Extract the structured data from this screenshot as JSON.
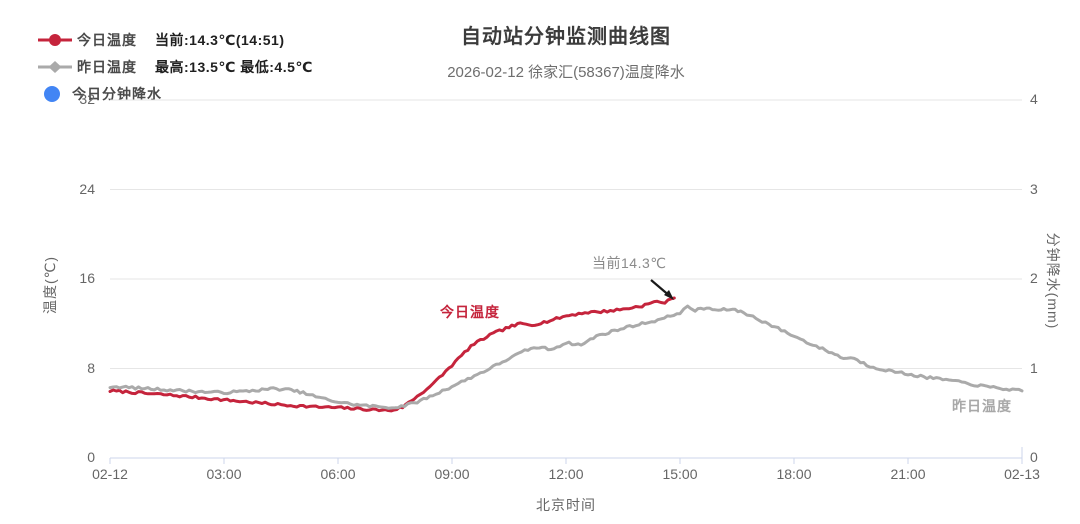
{
  "title": "自动站分钟监测曲线图",
  "subtitle": "2026-02-12 徐家汇(58367)温度降水",
  "colors": {
    "today": "#c5243c",
    "yesterday": "#aaaaaa",
    "precip": "#4285f4",
    "grid": "#e6e6e6",
    "axis": "#ccd6eb",
    "arrow": "#1a1a1a"
  },
  "legend": {
    "items": [
      {
        "name": "今日温度",
        "stat": "当前:14.3℃(14:51)",
        "color": "#c5243c"
      },
      {
        "name": "昨日温度",
        "stat": "最高:13.5℃ 最低:4.5℃",
        "color": "#aaaaaa"
      },
      {
        "name": "今日分钟降水",
        "stat": "",
        "color": "#4285f4"
      }
    ]
  },
  "annotations": {
    "current_label": "当前14.3℃",
    "today_series_label": "今日温度",
    "yesterday_series_label": "昨日温度"
  },
  "chart_data": {
    "type": "line",
    "title": "自动站分钟监测曲线图",
    "subtitle": "2026-02-12 徐家汇(58367)温度降水",
    "xlabel": "北京时间",
    "ylabel_left": "温度(℃)",
    "ylabel_right": "分钟降水(mm)",
    "x_ticks": [
      "02-12",
      "03:00",
      "06:00",
      "09:00",
      "12:00",
      "15:00",
      "18:00",
      "21:00",
      "02-13"
    ],
    "y_left_ticks": [
      0,
      8,
      16,
      24,
      32
    ],
    "y_right_ticks": [
      0,
      1,
      2,
      3,
      4
    ],
    "ylim_left": [
      0,
      32
    ],
    "ylim_right": [
      0,
      4
    ],
    "xlim_hours": [
      0,
      24
    ],
    "grid": "horizontal-only",
    "legend_position": "top-left",
    "current_point": {
      "time": "14:51",
      "value": 14.3
    },
    "yesterday_max": 13.5,
    "yesterday_min": 4.5,
    "series": [
      {
        "name": "今日温度",
        "color": "#c5243c",
        "axis": "left",
        "unit": "℃",
        "points": [
          [
            0,
            6.0
          ],
          [
            0.5,
            5.9
          ],
          [
            1,
            5.75
          ],
          [
            1.5,
            5.65
          ],
          [
            2,
            5.5
          ],
          [
            2.5,
            5.35
          ],
          [
            3,
            5.2
          ],
          [
            3.5,
            5.05
          ],
          [
            4,
            4.9
          ],
          [
            4.5,
            4.75
          ],
          [
            5,
            4.65
          ],
          [
            5.5,
            4.55
          ],
          [
            6,
            4.5
          ],
          [
            6.5,
            4.4
          ],
          [
            7,
            4.3
          ],
          [
            7.4,
            4.25
          ],
          [
            7.7,
            4.55
          ],
          [
            8,
            5.3
          ],
          [
            8.5,
            6.6
          ],
          [
            9,
            8.3
          ],
          [
            9.5,
            10.0
          ],
          [
            10,
            11.0
          ],
          [
            10.5,
            11.7
          ],
          [
            10.8,
            12.0
          ],
          [
            11.1,
            11.9
          ],
          [
            11.5,
            12.2
          ],
          [
            12,
            12.7
          ],
          [
            12.5,
            13.0
          ],
          [
            13,
            13.1
          ],
          [
            13.5,
            13.3
          ],
          [
            14,
            13.6
          ],
          [
            14.4,
            14.0
          ],
          [
            14.6,
            13.9
          ],
          [
            14.85,
            14.3
          ]
        ]
      },
      {
        "name": "昨日温度",
        "color": "#aaaaaa",
        "axis": "left",
        "unit": "℃",
        "points": [
          [
            0,
            6.4
          ],
          [
            0.5,
            6.3
          ],
          [
            1,
            6.2
          ],
          [
            1.5,
            6.1
          ],
          [
            2,
            6.0
          ],
          [
            2.5,
            5.9
          ],
          [
            3,
            5.85
          ],
          [
            3.5,
            5.95
          ],
          [
            4,
            6.1
          ],
          [
            4.3,
            6.2
          ],
          [
            4.7,
            6.1
          ],
          [
            5,
            5.9
          ],
          [
            5.5,
            5.4
          ],
          [
            6,
            5.0
          ],
          [
            6.5,
            4.75
          ],
          [
            7,
            4.6
          ],
          [
            7.5,
            4.5
          ],
          [
            8,
            4.9
          ],
          [
            8.5,
            5.6
          ],
          [
            9,
            6.4
          ],
          [
            9.5,
            7.2
          ],
          [
            10,
            8.0
          ],
          [
            10.5,
            8.9
          ],
          [
            11,
            9.7
          ],
          [
            11.3,
            9.9
          ],
          [
            11.6,
            9.7
          ],
          [
            12,
            10.3
          ],
          [
            12.4,
            10.1
          ],
          [
            12.8,
            10.9
          ],
          [
            13.2,
            11.3
          ],
          [
            13.6,
            11.7
          ],
          [
            14,
            12.0
          ],
          [
            14.5,
            12.4
          ],
          [
            15,
            13.0
          ],
          [
            15.2,
            13.5
          ],
          [
            15.4,
            13.2
          ],
          [
            15.7,
            13.4
          ],
          [
            16,
            13.2
          ],
          [
            16.3,
            13.3
          ],
          [
            16.6,
            13.1
          ],
          [
            17,
            12.5
          ],
          [
            17.5,
            11.7
          ],
          [
            18,
            10.9
          ],
          [
            18.5,
            10.1
          ],
          [
            19,
            9.4
          ],
          [
            19.3,
            8.9
          ],
          [
            19.5,
            9.0
          ],
          [
            20,
            8.2
          ],
          [
            20.5,
            7.8
          ],
          [
            21,
            7.5
          ],
          [
            21.5,
            7.2
          ],
          [
            22,
            7.0
          ],
          [
            22.5,
            6.7
          ],
          [
            23,
            6.4
          ],
          [
            23.5,
            6.2
          ],
          [
            24,
            6.0
          ]
        ]
      },
      {
        "name": "今日分钟降水",
        "color": "#4285f4",
        "axis": "right",
        "unit": "mm",
        "points": []
      }
    ],
    "annotation_arrow": {
      "x1": 651,
      "y1": 280,
      "x2": 671,
      "y2": 297
    }
  }
}
